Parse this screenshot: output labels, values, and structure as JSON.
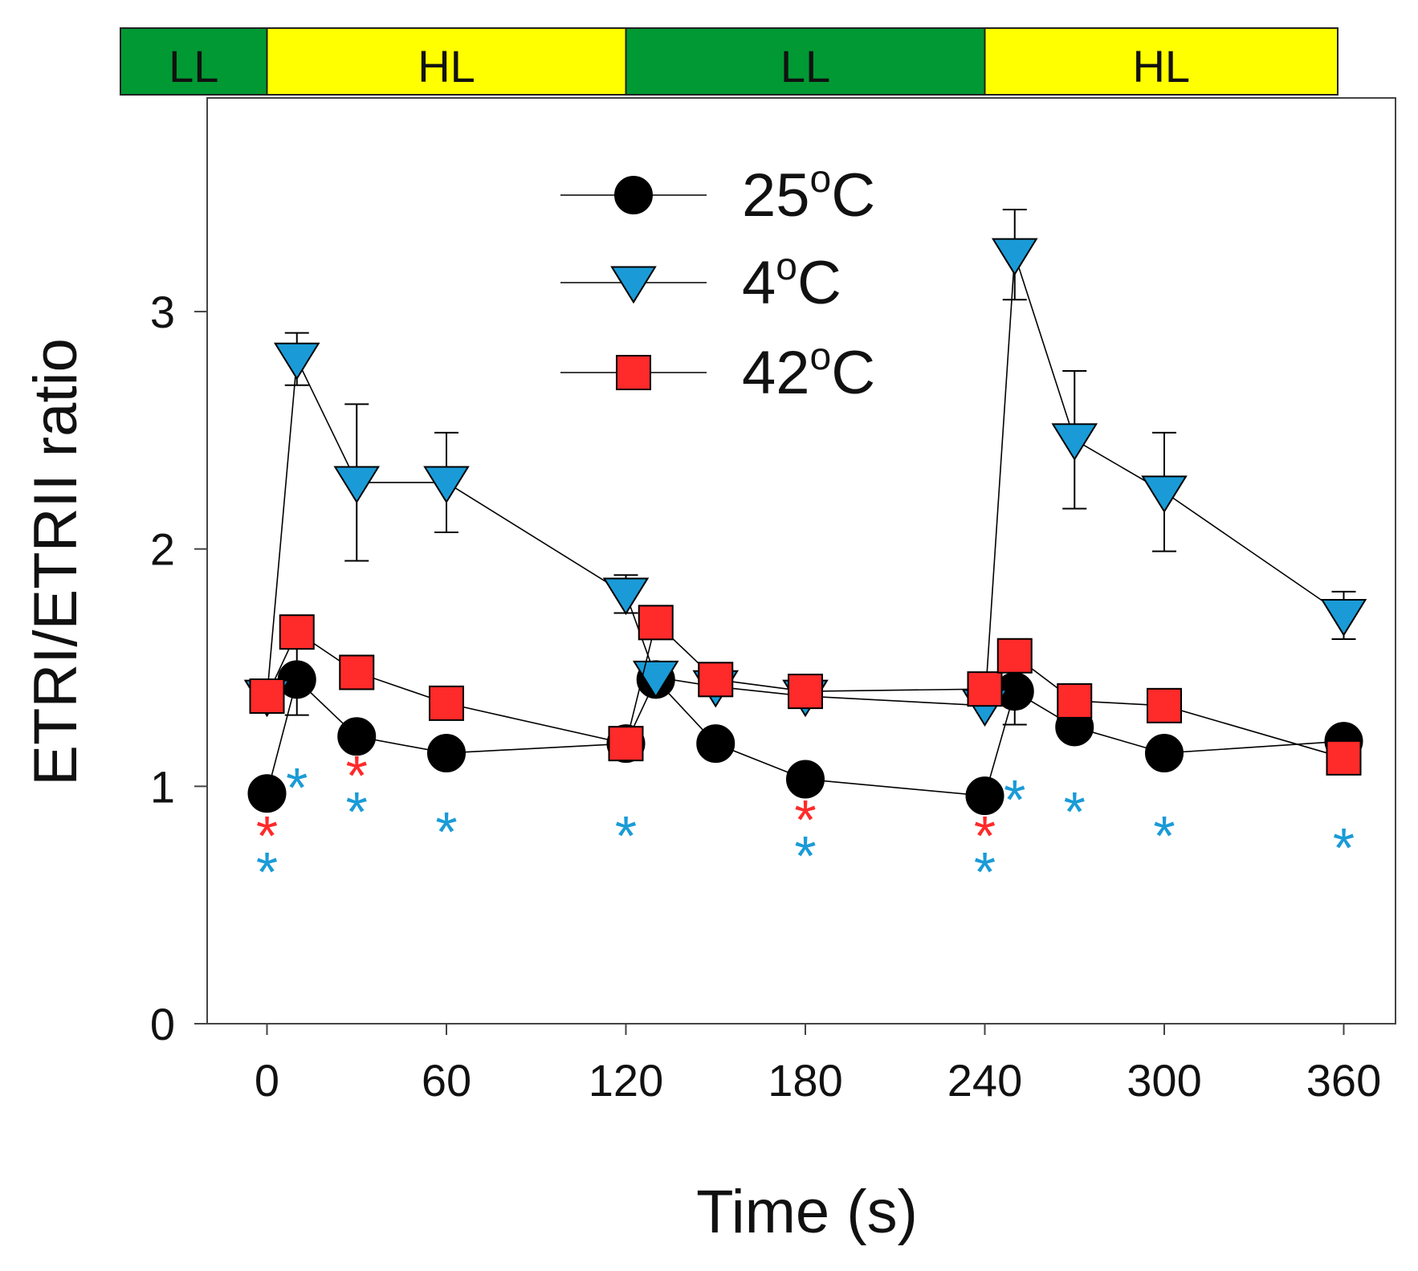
{
  "chart_data": {
    "type": "line",
    "xlabel": "Time (s)",
    "ylabel": "ETRI/ETRII ratio",
    "xlim": [
      -30,
      375
    ],
    "ylim": [
      0,
      3.9
    ],
    "xticks": [
      0,
      60,
      120,
      180,
      240,
      300,
      360
    ],
    "xtick_labels": [
      "0",
      "60",
      "120",
      "180",
      "240",
      "300",
      "360"
    ],
    "yticks": [
      0,
      1,
      2,
      3
    ],
    "ytick_labels": [
      "0",
      "1",
      "2",
      "3"
    ],
    "grid": false,
    "legend_position": "top-center",
    "light_phases": [
      {
        "label": "LL",
        "x0": -50,
        "x1": 0,
        "color": "#009933"
      },
      {
        "label": "HL",
        "x0": 0,
        "x1": 120,
        "color": "#ffff00"
      },
      {
        "label": "LL",
        "x0": 120,
        "x1": 240,
        "color": "#009933"
      },
      {
        "label": "HL",
        "x0": 240,
        "x1": 360,
        "color": "#ffff00"
      }
    ],
    "series": [
      {
        "name": "25°C",
        "label_base": "25",
        "label_sup": "o",
        "label_suffix": "C",
        "marker": "circle",
        "color": "#000000",
        "x": [
          0,
          10,
          30,
          60,
          120,
          130,
          150,
          180,
          240,
          250,
          270,
          300,
          360
        ],
        "y": [
          0.97,
          1.45,
          1.21,
          1.14,
          1.18,
          1.45,
          1.18,
          1.03,
          0.96,
          1.4,
          1.25,
          1.14,
          1.19
        ],
        "err": [
          0,
          0.15,
          0,
          0,
          0,
          0,
          0,
          0,
          0,
          0.14,
          0,
          0,
          0
        ]
      },
      {
        "name": "4°C",
        "label_base": "4",
        "label_sup": "o",
        "label_suffix": "C",
        "marker": "triangle-down",
        "color": "#1a9bd7",
        "x": [
          0,
          10,
          30,
          60,
          120,
          130,
          150,
          180,
          240,
          250,
          270,
          300,
          360
        ],
        "y": [
          1.38,
          2.8,
          2.28,
          2.28,
          1.81,
          1.46,
          1.42,
          1.38,
          1.34,
          3.24,
          2.46,
          2.24,
          1.72
        ],
        "err": [
          0,
          0.11,
          0.33,
          0.21,
          0.08,
          0,
          0,
          0,
          0,
          0.19,
          0.29,
          0.25,
          0.1
        ]
      },
      {
        "name": "42°C",
        "label_base": "42",
        "label_sup": "o",
        "label_suffix": "C",
        "marker": "square",
        "color": "#ff2a2a",
        "x": [
          0,
          10,
          30,
          60,
          120,
          130,
          150,
          180,
          240,
          250,
          270,
          300,
          360
        ],
        "y": [
          1.38,
          1.65,
          1.48,
          1.35,
          1.18,
          1.69,
          1.45,
          1.4,
          1.41,
          1.55,
          1.36,
          1.34,
          1.12
        ],
        "err": [
          0,
          0,
          0,
          0,
          0,
          0,
          0,
          0,
          0,
          0,
          0,
          0,
          0
        ]
      }
    ],
    "significance_markers": [
      {
        "x": 0,
        "symbols": [
          {
            "text": "*",
            "color": "#ff2a2a"
          },
          {
            "text": "*",
            "color": "#1a9bd7"
          }
        ]
      },
      {
        "x": 10,
        "symbols": [
          {
            "text": "*",
            "color": "#1a9bd7"
          }
        ]
      },
      {
        "x": 30,
        "symbols": [
          {
            "text": "*",
            "color": "#ff2a2a"
          },
          {
            "text": "*",
            "color": "#1a9bd7"
          }
        ]
      },
      {
        "x": 60,
        "symbols": [
          {
            "text": "*",
            "color": "#1a9bd7"
          }
        ]
      },
      {
        "x": 120,
        "symbols": [
          {
            "text": "*",
            "color": "#1a9bd7"
          }
        ]
      },
      {
        "x": 180,
        "symbols": [
          {
            "text": "*",
            "color": "#ff2a2a"
          },
          {
            "text": "*",
            "color": "#1a9bd7"
          }
        ]
      },
      {
        "x": 240,
        "symbols": [
          {
            "text": "*",
            "color": "#ff2a2a"
          },
          {
            "text": "*",
            "color": "#1a9bd7"
          }
        ]
      },
      {
        "x": 250,
        "symbols": [
          {
            "text": "*",
            "color": "#1a9bd7"
          }
        ]
      },
      {
        "x": 270,
        "symbols": [
          {
            "text": "*",
            "color": "#1a9bd7"
          }
        ]
      },
      {
        "x": 300,
        "symbols": [
          {
            "text": "*",
            "color": "#1a9bd7"
          }
        ]
      },
      {
        "x": 360,
        "symbols": [
          {
            "text": "*",
            "color": "#1a9bd7"
          }
        ]
      }
    ]
  }
}
